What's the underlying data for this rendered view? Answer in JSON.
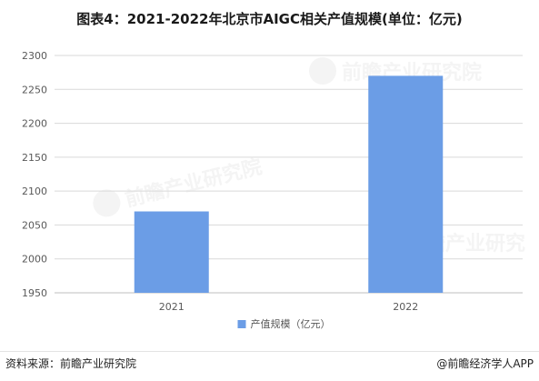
{
  "title": "图表4：2021-2022年北京市AIGC相关产值规模(单位：亿元)",
  "watermark_text": "前瞻产业研究院",
  "source_note": "资料来源：前瞻产业研究院",
  "app_credit": "@前瞻经济学人APP",
  "colors": {
    "bar": "#6b9de6",
    "grid": "#d9d9d9",
    "axis_text": "#595959"
  },
  "chart_data": {
    "type": "bar",
    "categories": [
      "2021",
      "2022"
    ],
    "series": [
      {
        "name": "产值规模（亿元）",
        "values": [
          2070,
          2270
        ]
      }
    ],
    "ylim": [
      1950,
      2300
    ],
    "yticks": [
      1950,
      2000,
      2050,
      2100,
      2150,
      2200,
      2250,
      2300
    ],
    "grid": true,
    "legend_position": "bottom-center"
  }
}
